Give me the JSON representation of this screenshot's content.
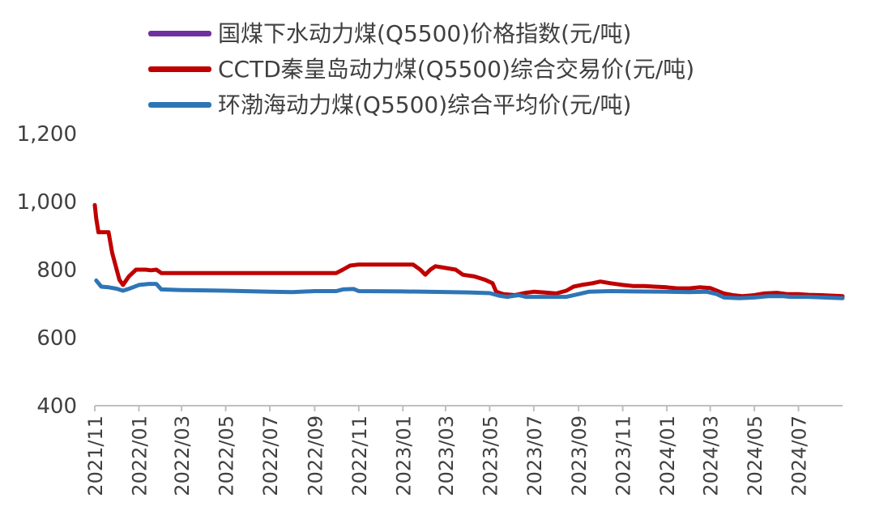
{
  "chart_data": {
    "type": "line",
    "title": "",
    "xlabel": "",
    "ylabel": "",
    "ylim": [
      400,
      1200
    ],
    "yticks": [
      "400",
      "600",
      "800",
      "1,000",
      "1,200"
    ],
    "ytick_values": [
      400,
      600,
      800,
      1000,
      1200
    ],
    "xlim": [
      "2021-11-01",
      "2024-08-31"
    ],
    "xticks": [
      "2021/11",
      "2022/01",
      "2022/03",
      "2022/05",
      "2022/07",
      "2022/09",
      "2022/11",
      "2023/01",
      "2023/03",
      "2023/05",
      "2023/07",
      "2023/09",
      "2023/11",
      "2024/01",
      "2024/03",
      "2024/05",
      "2024/07"
    ],
    "grid": false,
    "legend_position": "top",
    "series": [
      {
        "name": "国煤下水动力煤(Q5500)价格指数(元/吨)",
        "color": "#7030A0",
        "points": []
      },
      {
        "name": "CCTD秦皇岛动力煤(Q5500)综合交易价(元/吨)",
        "color": "#C00000",
        "points": [
          [
            "2021-11-01",
            990
          ],
          [
            "2021-11-03",
            950
          ],
          [
            "2021-11-06",
            910
          ],
          [
            "2021-11-20",
            910
          ],
          [
            "2021-11-25",
            850
          ],
          [
            "2021-12-05",
            770
          ],
          [
            "2021-12-10",
            755
          ],
          [
            "2021-12-18",
            780
          ],
          [
            "2021-12-28",
            800
          ],
          [
            "2022-01-10",
            800
          ],
          [
            "2022-01-18",
            798
          ],
          [
            "2022-01-25",
            800
          ],
          [
            "2022-02-01",
            790
          ],
          [
            "2022-04-01",
            790
          ],
          [
            "2022-06-01",
            790
          ],
          [
            "2022-08-01",
            790
          ],
          [
            "2022-10-01",
            790
          ],
          [
            "2022-10-10",
            800
          ],
          [
            "2022-10-20",
            812
          ],
          [
            "2022-11-01",
            815
          ],
          [
            "2022-12-01",
            815
          ],
          [
            "2023-01-01",
            815
          ],
          [
            "2023-01-15",
            815
          ],
          [
            "2023-01-25",
            800
          ],
          [
            "2023-02-01",
            785
          ],
          [
            "2023-02-08",
            800
          ],
          [
            "2023-02-15",
            810
          ],
          [
            "2023-03-01",
            805
          ],
          [
            "2023-03-15",
            800
          ],
          [
            "2023-03-25",
            785
          ],
          [
            "2023-04-10",
            780
          ],
          [
            "2023-04-25",
            770
          ],
          [
            "2023-05-05",
            760
          ],
          [
            "2023-05-10",
            735
          ],
          [
            "2023-05-20",
            728
          ],
          [
            "2023-06-05",
            725
          ],
          [
            "2023-06-20",
            732
          ],
          [
            "2023-07-01",
            735
          ],
          [
            "2023-07-15",
            733
          ],
          [
            "2023-08-01",
            730
          ],
          [
            "2023-08-15",
            738
          ],
          [
            "2023-08-25",
            750
          ],
          [
            "2023-09-05",
            755
          ],
          [
            "2023-09-20",
            760
          ],
          [
            "2023-10-01",
            765
          ],
          [
            "2023-10-15",
            760
          ],
          [
            "2023-11-01",
            755
          ],
          [
            "2023-11-15",
            752
          ],
          [
            "2023-12-01",
            752
          ],
          [
            "2023-12-15",
            750
          ],
          [
            "2024-01-01",
            748
          ],
          [
            "2024-01-15",
            745
          ],
          [
            "2024-02-01",
            745
          ],
          [
            "2024-02-15",
            748
          ],
          [
            "2024-03-01",
            746
          ],
          [
            "2024-03-10",
            738
          ],
          [
            "2024-03-20",
            730
          ],
          [
            "2024-04-01",
            725
          ],
          [
            "2024-04-15",
            722
          ],
          [
            "2024-05-01",
            725
          ],
          [
            "2024-05-15",
            730
          ],
          [
            "2024-06-01",
            732
          ],
          [
            "2024-06-15",
            728
          ],
          [
            "2024-07-01",
            728
          ],
          [
            "2024-07-15",
            726
          ],
          [
            "2024-08-01",
            725
          ],
          [
            "2024-08-31",
            722
          ]
        ]
      },
      {
        "name": "环渤海动力煤(Q5500)综合平均价(元/吨)",
        "color": "#2E75B6",
        "points": [
          [
            "2021-11-03",
            768
          ],
          [
            "2021-11-10",
            750
          ],
          [
            "2021-11-20",
            748
          ],
          [
            "2021-12-01",
            744
          ],
          [
            "2021-12-10",
            738
          ],
          [
            "2021-12-20",
            745
          ],
          [
            "2022-01-01",
            755
          ],
          [
            "2022-01-15",
            758
          ],
          [
            "2022-01-25",
            758
          ],
          [
            "2022-02-01",
            742
          ],
          [
            "2022-03-01",
            740
          ],
          [
            "2022-05-01",
            738
          ],
          [
            "2022-07-01",
            735
          ],
          [
            "2022-08-01",
            734
          ],
          [
            "2022-09-01",
            737
          ],
          [
            "2022-10-01",
            737
          ],
          [
            "2022-10-10",
            742
          ],
          [
            "2022-10-25",
            743
          ],
          [
            "2022-11-01",
            737
          ],
          [
            "2023-01-01",
            736
          ],
          [
            "2023-02-01",
            735
          ],
          [
            "2023-04-01",
            733
          ],
          [
            "2023-05-01",
            731
          ],
          [
            "2023-05-15",
            723
          ],
          [
            "2023-05-25",
            720
          ],
          [
            "2023-06-10",
            725
          ],
          [
            "2023-06-20",
            720
          ],
          [
            "2023-07-15",
            720
          ],
          [
            "2023-08-15",
            720
          ],
          [
            "2023-09-01",
            728
          ],
          [
            "2023-09-15",
            735
          ],
          [
            "2023-10-15",
            737
          ],
          [
            "2023-11-15",
            736
          ],
          [
            "2024-01-01",
            735
          ],
          [
            "2024-02-01",
            734
          ],
          [
            "2024-02-25",
            735
          ],
          [
            "2024-03-10",
            728
          ],
          [
            "2024-03-20",
            718
          ],
          [
            "2024-04-10",
            716
          ],
          [
            "2024-05-01",
            718
          ],
          [
            "2024-05-20",
            722
          ],
          [
            "2024-06-10",
            722
          ],
          [
            "2024-06-20",
            720
          ],
          [
            "2024-07-15",
            720
          ],
          [
            "2024-08-31",
            716
          ]
        ]
      }
    ]
  }
}
